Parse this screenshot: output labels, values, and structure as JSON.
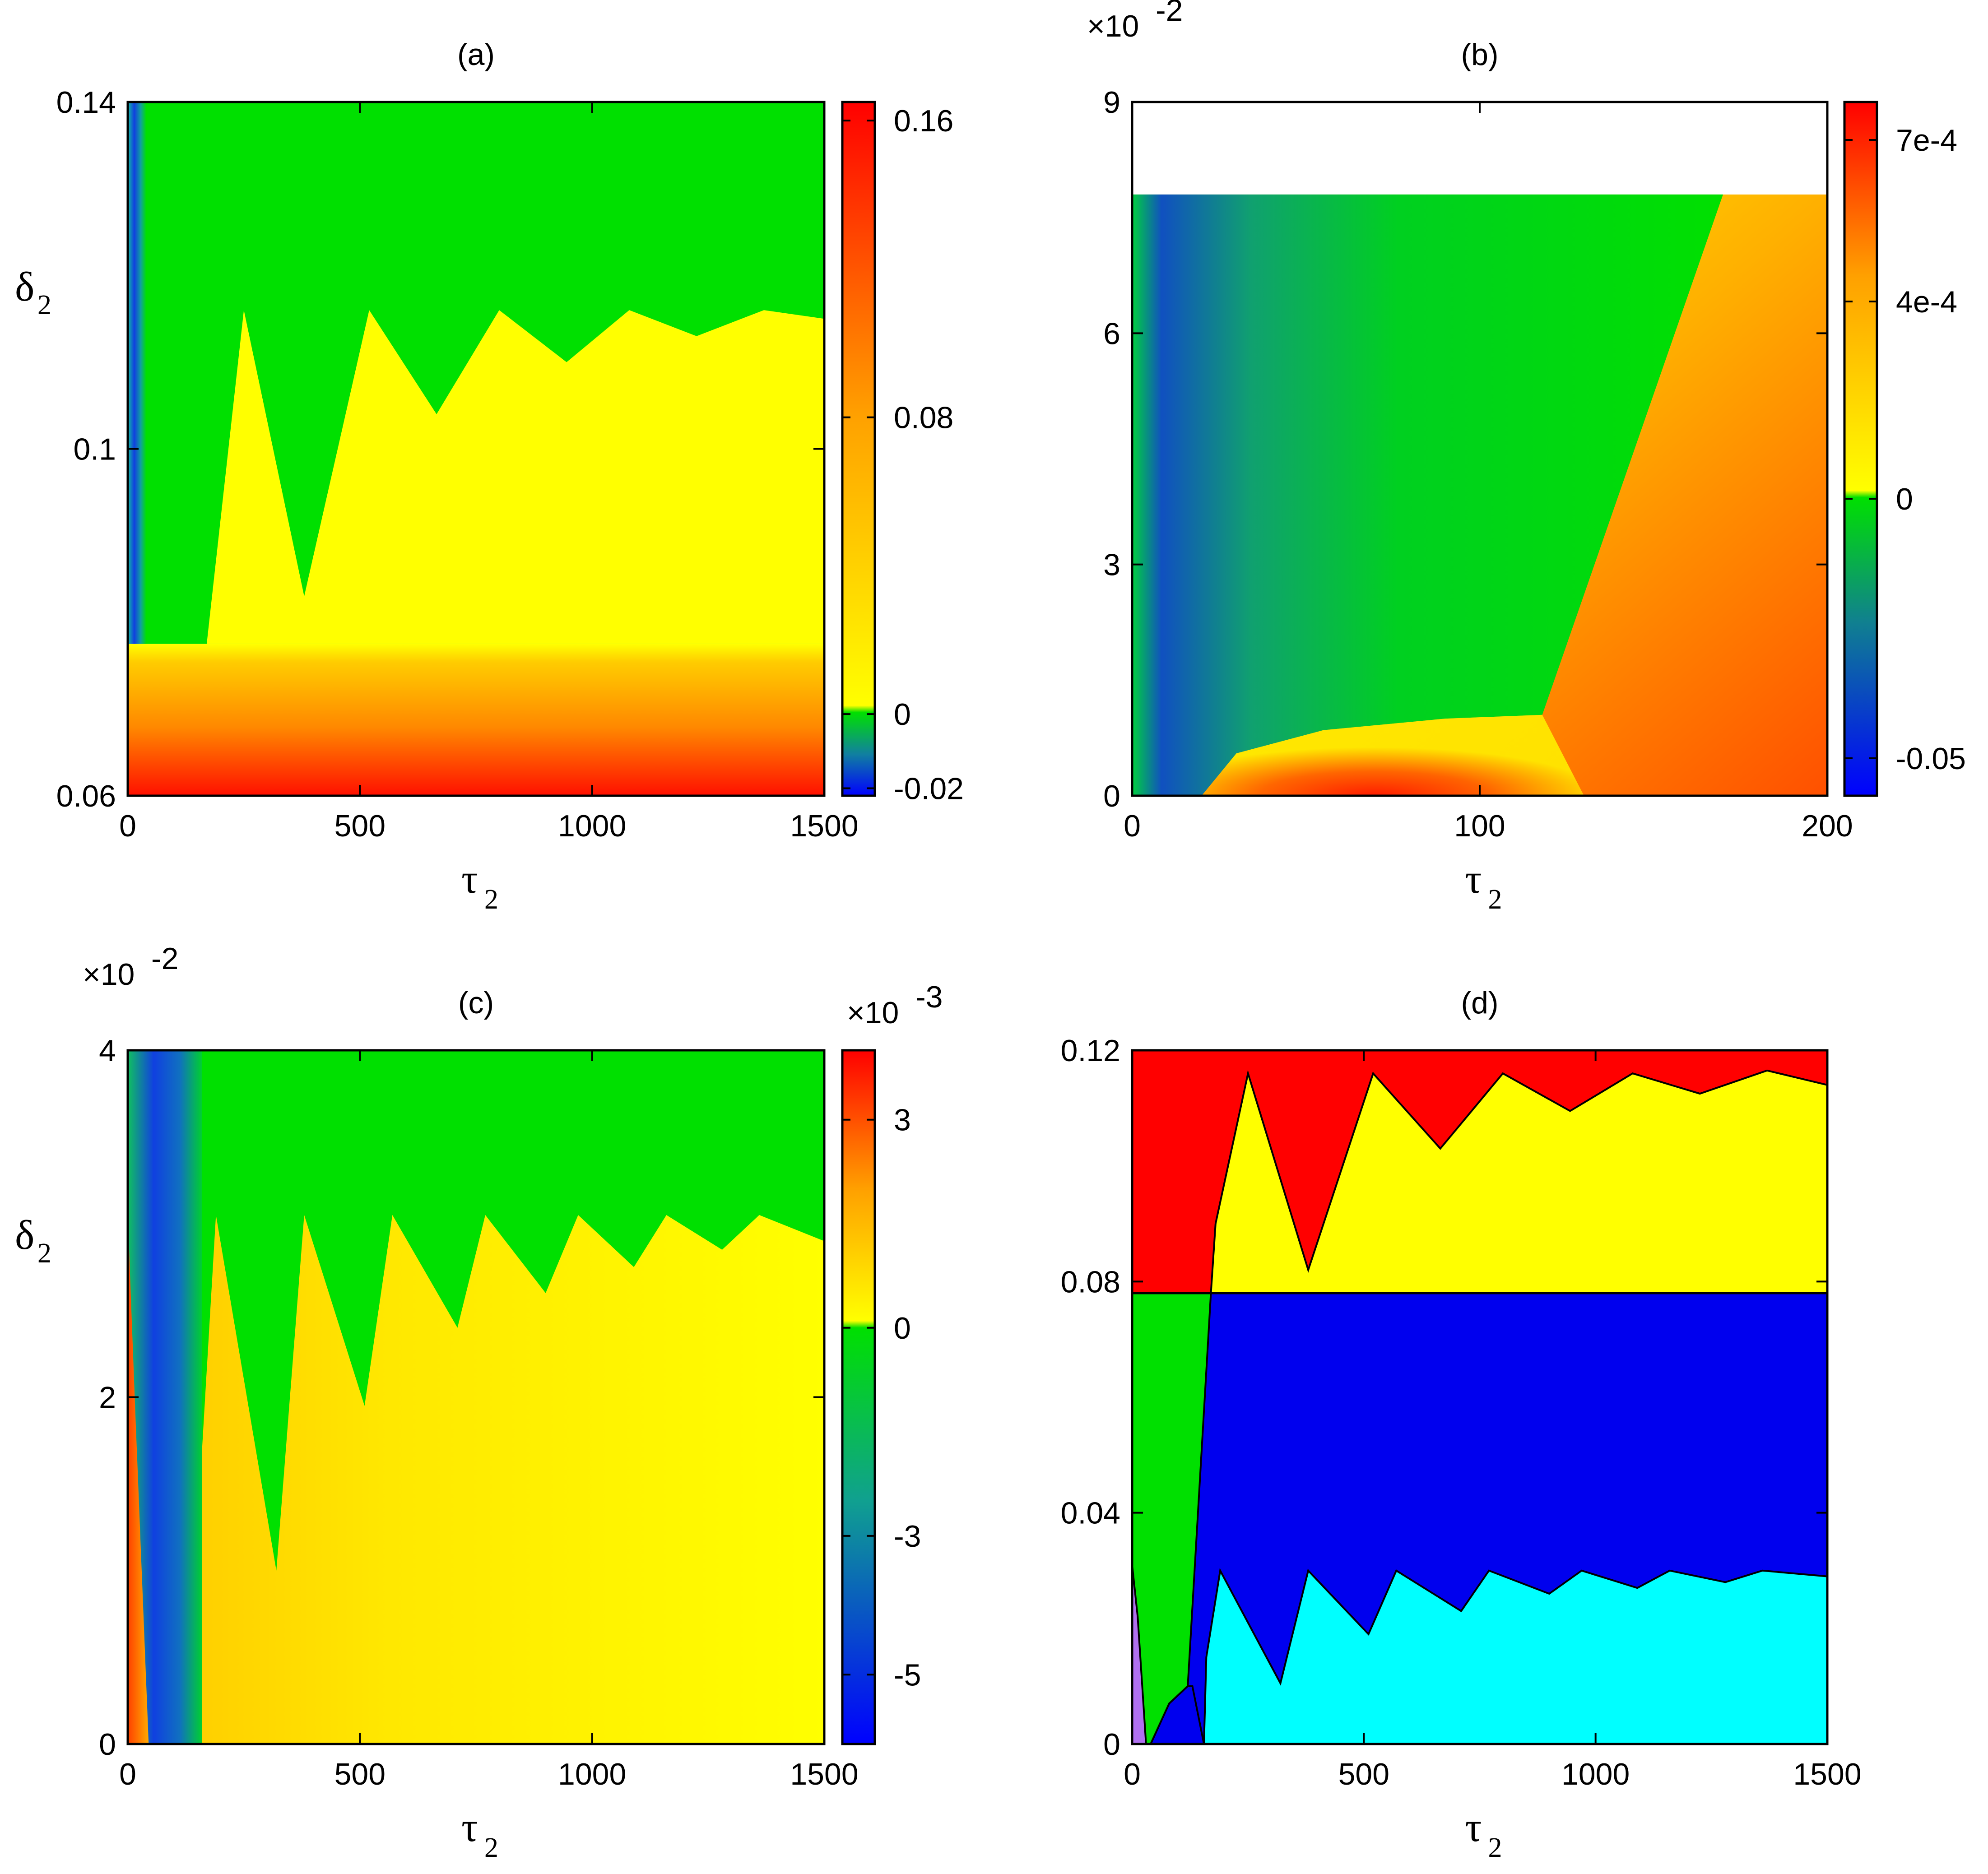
{
  "chart_data": [
    {
      "id": "a",
      "type": "heatmap",
      "title": "(a)",
      "xlabel": "τ",
      "xlabel_sub": "2",
      "ylabel": "δ",
      "ylabel_sub": "2",
      "xlim": [
        0,
        1500
      ],
      "ylim": [
        0.06,
        0.14
      ],
      "xticks": [
        "0",
        "500",
        "1000",
        "1500"
      ],
      "xtick_values": [
        0,
        500,
        1000,
        1500
      ],
      "yticks": [
        "0.06",
        "0.1",
        "0.14"
      ],
      "ytick_values": [
        0.06,
        0.1,
        0.14
      ],
      "colorbar": {
        "ticks": [
          "-0.02",
          "0",
          "0.08",
          "0.16"
        ],
        "tick_values": [
          -0.02,
          0,
          0.08,
          0.16
        ],
        "range": [
          -0.022,
          0.165
        ]
      },
      "regions": [
        {
          "name": "green",
          "value": "negative"
        },
        {
          "name": "yellow",
          "value": "positive"
        },
        {
          "name": "orange-red",
          "value": "high"
        }
      ],
      "boundary": [
        [
          0,
          0.0775
        ],
        [
          170,
          0.0775
        ],
        [
          250,
          0.116
        ],
        [
          380,
          0.083
        ],
        [
          520,
          0.116
        ],
        [
          665,
          0.104
        ],
        [
          800,
          0.116
        ],
        [
          945,
          0.11
        ],
        [
          1080,
          0.116
        ],
        [
          1225,
          0.113
        ],
        [
          1370,
          0.116
        ],
        [
          1500,
          0.115
        ]
      ]
    },
    {
      "id": "b",
      "type": "heatmap",
      "title": "(b)",
      "xlabel": "τ",
      "xlabel_sub": "2",
      "ylabel": "",
      "xlim": [
        0,
        200
      ],
      "ylim": [
        0,
        9
      ],
      "y_multiplier": "×10",
      "y_multiplier_exp": "-2",
      "xticks": [
        "0",
        "100",
        "200"
      ],
      "xtick_values": [
        0,
        100,
        200
      ],
      "yticks": [
        "0",
        "3",
        "6",
        "9"
      ],
      "ytick_values": [
        0,
        3,
        6,
        9
      ],
      "colorbar": {
        "ticks": [
          "-0.05",
          "0",
          "4e-4",
          "7e-4"
        ],
        "tick_values": [
          -0.05,
          0,
          0.0004,
          0.0007
        ]
      },
      "boundary": [
        [
          20,
          0
        ],
        [
          30,
          0.55
        ],
        [
          55,
          0.85
        ],
        [
          90,
          1.0
        ],
        [
          118,
          1.05
        ],
        [
          170,
          7.8
        ]
      ],
      "y_max_data": 7.8
    },
    {
      "id": "c",
      "type": "heatmap",
      "title": "(c)",
      "xlabel": "τ",
      "xlabel_sub": "2",
      "ylabel": "δ",
      "ylabel_sub": "2",
      "xlim": [
        0,
        1500
      ],
      "ylim": [
        0,
        4
      ],
      "y_multiplier": "×10",
      "y_multiplier_exp": "-2",
      "xticks": [
        "0",
        "500",
        "1000",
        "1500"
      ],
      "xtick_values": [
        0,
        500,
        1000,
        1500
      ],
      "yticks": [
        "0",
        "2",
        "4"
      ],
      "ytick_values": [
        0,
        2,
        4
      ],
      "colorbar": {
        "multiplier": "×10",
        "multiplier_exp": "-3",
        "ticks": [
          "-5",
          "-3",
          "0",
          "3"
        ],
        "tick_values": [
          -5,
          -3,
          0,
          3
        ],
        "range": [
          -6,
          4
        ]
      },
      "boundary": [
        [
          160,
          0
        ],
        [
          160,
          1.7
        ],
        [
          190,
          3.05
        ],
        [
          320,
          1.0
        ],
        [
          380,
          3.05
        ],
        [
          510,
          1.95
        ],
        [
          570,
          3.05
        ],
        [
          710,
          2.4
        ],
        [
          770,
          3.05
        ],
        [
          900,
          2.6
        ],
        [
          970,
          3.05
        ],
        [
          1090,
          2.75
        ],
        [
          1160,
          3.05
        ],
        [
          1280,
          2.85
        ],
        [
          1360,
          3.05
        ],
        [
          1500,
          2.9
        ]
      ]
    },
    {
      "id": "d",
      "type": "heatmap",
      "title": "(d)",
      "xlabel": "τ",
      "xlabel_sub": "2",
      "ylabel": "",
      "xlim": [
        0,
        1500
      ],
      "ylim": [
        0,
        0.12
      ],
      "xticks": [
        "0",
        "500",
        "1000",
        "1500"
      ],
      "xtick_values": [
        0,
        500,
        1000,
        1500
      ],
      "yticks": [
        "0",
        "0.04",
        "0.08",
        "0.12"
      ],
      "ytick_values": [
        0,
        0.04,
        0.08,
        0.12
      ],
      "colors": {
        "red": "#ff0000",
        "yellow": "#ffff00",
        "green": "#00e000",
        "blue": "#0000ee",
        "cyan": "#00ffff",
        "violet": "#b070f0"
      },
      "upper_boundary": [
        [
          170,
          0.078
        ],
        [
          180,
          0.09
        ],
        [
          250,
          0.116
        ],
        [
          380,
          0.082
        ],
        [
          520,
          0.116
        ],
        [
          665,
          0.103
        ],
        [
          800,
          0.116
        ],
        [
          945,
          0.1095
        ],
        [
          1080,
          0.116
        ],
        [
          1225,
          0.1125
        ],
        [
          1370,
          0.1165
        ],
        [
          1500,
          0.114
        ]
      ],
      "lower_boundary": [
        [
          155,
          0
        ],
        [
          160,
          0.015
        ],
        [
          190,
          0.03
        ],
        [
          320,
          0.0105
        ],
        [
          380,
          0.03
        ],
        [
          510,
          0.019
        ],
        [
          570,
          0.03
        ],
        [
          710,
          0.023
        ],
        [
          770,
          0.03
        ],
        [
          900,
          0.026
        ],
        [
          970,
          0.03
        ],
        [
          1090,
          0.027
        ],
        [
          1160,
          0.03
        ],
        [
          1280,
          0.028
        ],
        [
          1360,
          0.03
        ],
        [
          1500,
          0.029
        ]
      ],
      "split_line": 0.078
    }
  ]
}
